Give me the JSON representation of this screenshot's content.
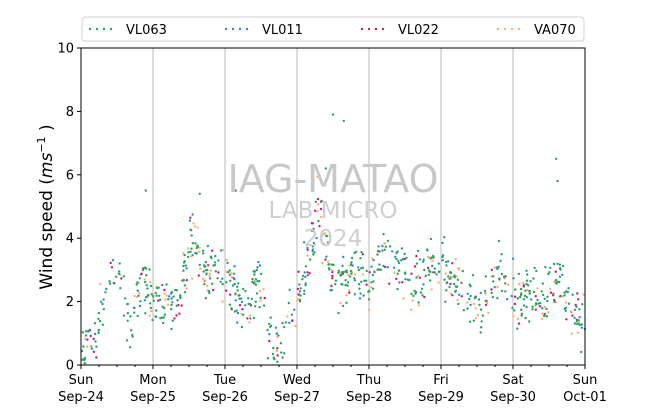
{
  "chart_data": {
    "type": "scatter",
    "title": "",
    "xlabel": "",
    "ylabel": "Wind speed (ms⁻¹)",
    "ylabel_parts": {
      "main": "Wind speed (",
      "unit": "ms",
      "exp": "−1",
      "close": " )"
    },
    "ylim": [
      0,
      10
    ],
    "yticks": [
      0,
      2,
      4,
      6,
      8,
      10
    ],
    "xlim_days": [
      0,
      7
    ],
    "xticks": [
      {
        "day": "Sun",
        "date": "Sep-24"
      },
      {
        "day": "Mon",
        "date": "Sep-25"
      },
      {
        "day": "Tue",
        "date": "Sep-26"
      },
      {
        "day": "Wed",
        "date": "Sep-27"
      },
      {
        "day": "Thu",
        "date": "Sep-28"
      },
      {
        "day": "Fri",
        "date": "Sep-29"
      },
      {
        "day": "Sat",
        "date": "Sep-30"
      },
      {
        "day": "Sun",
        "date": "Oct-01"
      }
    ],
    "grid": "vertical",
    "legend_position": "top",
    "series": [
      {
        "name": "VL063",
        "color": "#2ca25f"
      },
      {
        "name": "VL011",
        "color": "#2b8cbe"
      },
      {
        "name": "VL022",
        "color": "#c51b8a"
      },
      {
        "name": "VA070",
        "color": "#fdae6b"
      }
    ],
    "trend_nodes": [
      {
        "t": 0.0,
        "v": 0.6
      },
      {
        "t": 0.15,
        "v": 0.5
      },
      {
        "t": 0.3,
        "v": 1.8
      },
      {
        "t": 0.42,
        "v": 3.0
      },
      {
        "t": 0.55,
        "v": 2.8
      },
      {
        "t": 0.7,
        "v": 1.2
      },
      {
        "t": 0.85,
        "v": 2.6
      },
      {
        "t": 1.0,
        "v": 1.9
      },
      {
        "t": 1.2,
        "v": 1.8
      },
      {
        "t": 1.35,
        "v": 1.9
      },
      {
        "t": 1.55,
        "v": 4.0
      },
      {
        "t": 1.75,
        "v": 2.8
      },
      {
        "t": 1.9,
        "v": 3.0
      },
      {
        "t": 2.1,
        "v": 2.6
      },
      {
        "t": 2.3,
        "v": 1.5
      },
      {
        "t": 2.45,
        "v": 3.0
      },
      {
        "t": 2.6,
        "v": 1.2
      },
      {
        "t": 2.75,
        "v": 0.5
      },
      {
        "t": 2.9,
        "v": 1.5
      },
      {
        "t": 3.05,
        "v": 2.5
      },
      {
        "t": 3.2,
        "v": 3.6
      },
      {
        "t": 3.3,
        "v": 5.0
      },
      {
        "t": 3.45,
        "v": 3.0
      },
      {
        "t": 3.6,
        "v": 2.6
      },
      {
        "t": 3.8,
        "v": 3.0
      },
      {
        "t": 4.0,
        "v": 2.4
      },
      {
        "t": 4.2,
        "v": 3.8
      },
      {
        "t": 4.4,
        "v": 3.2
      },
      {
        "t": 4.6,
        "v": 2.5
      },
      {
        "t": 4.8,
        "v": 3.0
      },
      {
        "t": 5.0,
        "v": 3.2
      },
      {
        "t": 5.2,
        "v": 2.6
      },
      {
        "t": 5.4,
        "v": 2.0
      },
      {
        "t": 5.55,
        "v": 1.6
      },
      {
        "t": 5.7,
        "v": 2.7
      },
      {
        "t": 5.9,
        "v": 2.7
      },
      {
        "t": 6.1,
        "v": 2.0
      },
      {
        "t": 6.25,
        "v": 2.5
      },
      {
        "t": 6.45,
        "v": 2.0
      },
      {
        "t": 6.6,
        "v": 2.8
      },
      {
        "t": 6.8,
        "v": 2.0
      },
      {
        "t": 7.0,
        "v": 1.2
      }
    ],
    "spread": 0.65,
    "points_per_series": [
      520,
      110,
      110,
      150
    ],
    "outliers": [
      {
        "t": 0.9,
        "v": 5.5
      },
      {
        "t": 1.65,
        "v": 5.4
      },
      {
        "t": 3.5,
        "v": 7.9
      },
      {
        "t": 3.65,
        "v": 7.7
      },
      {
        "t": 6.6,
        "v": 6.5
      },
      {
        "t": 6.62,
        "v": 5.8
      },
      {
        "t": 2.15,
        "v": 5.5
      },
      {
        "t": 3.4,
        "v": 6.2
      }
    ]
  },
  "watermark": {
    "line1": "IAG-MATAO",
    "line2": "LAB MICRO",
    "line3": "2024"
  }
}
